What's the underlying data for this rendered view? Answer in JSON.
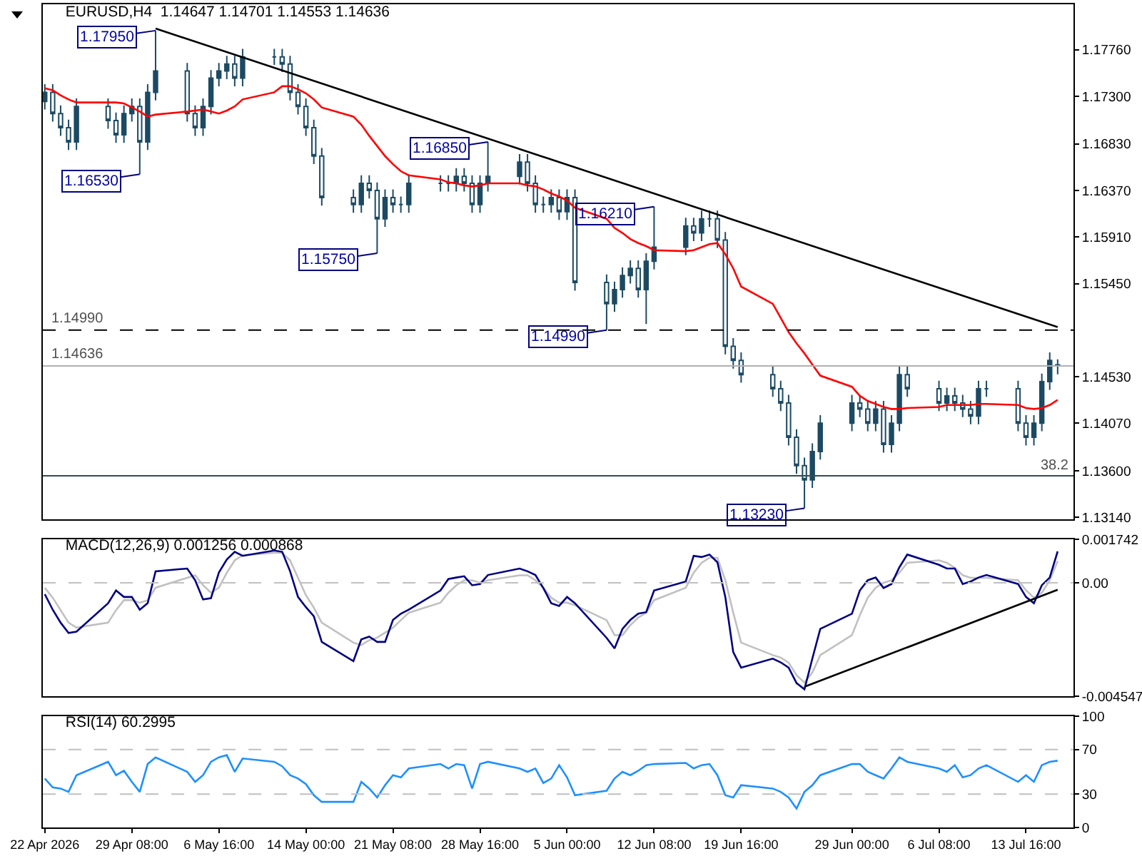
{
  "chart_data": [
    {
      "type": "candlestick",
      "title": "EURUSD,H4  1.14647 1.14701 1.14553 1.14636",
      "color": "#1c4a63",
      "x": [
        "2026-04-22T00:00",
        "2026-04-22T16:00",
        "2026-04-23T08:00",
        "2026-04-24T00:00",
        "2026-04-24T16:00",
        "2026-04-27T08:00",
        "2026-04-28T00:00",
        "2026-04-28T16:00",
        "2026-04-29T08:00",
        "2026-04-30T00:00",
        "2026-04-30T16:00",
        "2026-05-01T08:00",
        "2026-05-04T00:00",
        "2026-05-04T16:00",
        "2026-05-05T08:00",
        "2026-05-06T00:00",
        "2026-05-06T16:00",
        "2026-05-07T08:00",
        "2026-05-08T00:00",
        "2026-05-08T16:00",
        "2026-05-11T08:00",
        "2026-05-12T00:00",
        "2026-05-12T16:00",
        "2026-05-13T08:00",
        "2026-05-14T00:00",
        "2026-05-14T16:00",
        "2026-05-15T08:00",
        "2026-05-18T00:00",
        "2026-05-18T16:00",
        "2026-05-19T08:00",
        "2026-05-20T00:00",
        "2026-05-20T16:00",
        "2026-05-21T08:00",
        "2026-05-22T00:00",
        "2026-05-22T16:00",
        "2026-05-25T08:00",
        "2026-05-26T00:00",
        "2026-05-26T16:00",
        "2026-05-27T08:00",
        "2026-05-28T00:00",
        "2026-05-28T16:00",
        "2026-05-29T08:00",
        "2026-06-01T00:00",
        "2026-06-01T16:00",
        "2026-06-02T08:00",
        "2026-06-03T00:00",
        "2026-06-03T16:00",
        "2026-06-04T08:00",
        "2026-06-05T00:00",
        "2026-06-05T16:00",
        "2026-06-08T08:00",
        "2026-06-09T00:00",
        "2026-06-09T16:00",
        "2026-06-10T08:00",
        "2026-06-11T00:00",
        "2026-06-11T16:00",
        "2026-06-12T08:00",
        "2026-06-15T00:00",
        "2026-06-15T16:00",
        "2026-06-16T08:00",
        "2026-06-17T00:00",
        "2026-06-17T16:00",
        "2026-06-18T08:00",
        "2026-06-19T00:00",
        "2026-06-19T16:00",
        "2026-06-22T08:00",
        "2026-06-23T00:00",
        "2026-06-23T16:00",
        "2026-06-24T08:00",
        "2026-06-25T00:00",
        "2026-06-25T16:00",
        "2026-06-26T08:00",
        "2026-06-29T00:00",
        "2026-06-29T16:00",
        "2026-06-30T08:00",
        "2026-07-01T00:00",
        "2026-07-01T16:00",
        "2026-07-02T08:00",
        "2026-07-03T00:00",
        "2026-07-03T16:00",
        "2026-07-06T08:00",
        "2026-07-07T00:00",
        "2026-07-07T16:00",
        "2026-07-08T08:00",
        "2026-07-09T00:00",
        "2026-07-09T16:00",
        "2026-07-10T08:00",
        "2026-07-13T00:00",
        "2026-07-13T16:00",
        "2026-07-14T08:00",
        "2026-07-15T00:00",
        "2026-07-15T16:00",
        "2026-07-16T08:00"
      ],
      "ohlc": [
        [
          1.1725,
          1.1742,
          1.1717,
          1.1734
        ],
        [
          1.1734,
          1.1742,
          1.1705,
          1.1713
        ],
        [
          1.1713,
          1.1721,
          1.1691,
          1.1699
        ],
        [
          1.1699,
          1.1707,
          1.1677,
          1.1685
        ],
        [
          1.1685,
          1.1728,
          1.1677,
          1.172
        ],
        [
          1.172,
          1.1728,
          1.1698,
          1.1706
        ],
        [
          1.1706,
          1.1714,
          1.1684,
          1.1692
        ],
        [
          1.1692,
          1.1721,
          1.1684,
          1.1713
        ],
        [
          1.1713,
          1.1728,
          1.1705,
          1.172
        ],
        [
          1.172,
          1.1728,
          1.1653,
          1.1685
        ],
        [
          1.1685,
          1.1742,
          1.1677,
          1.1734
        ],
        [
          1.1734,
          1.1795,
          1.1726,
          1.1755
        ],
        [
          1.1755,
          1.1763,
          1.1705,
          1.1713
        ],
        [
          1.1713,
          1.1721,
          1.1691,
          1.1699
        ],
        [
          1.1699,
          1.1728,
          1.1691,
          1.172
        ],
        [
          1.172,
          1.1756,
          1.1712,
          1.1748
        ],
        [
          1.1748,
          1.1763,
          1.174,
          1.1755
        ],
        [
          1.1755,
          1.177,
          1.1747,
          1.1762
        ],
        [
          1.1762,
          1.177,
          1.174,
          1.1748
        ],
        [
          1.1748,
          1.1777,
          1.174,
          1.1769
        ],
        [
          1.1769,
          1.1777,
          1.1761,
          1.1769
        ],
        [
          1.1769,
          1.1777,
          1.1754,
          1.1762
        ],
        [
          1.1762,
          1.177,
          1.1726,
          1.1734
        ],
        [
          1.1734,
          1.1742,
          1.1712,
          1.172
        ],
        [
          1.172,
          1.1728,
          1.1691,
          1.1699
        ],
        [
          1.1699,
          1.1707,
          1.1663,
          1.1671
        ],
        [
          1.1671,
          1.1679,
          1.1622,
          1.163
        ],
        [
          1.163,
          1.1638,
          1.1615,
          1.1623
        ],
        [
          1.1623,
          1.1652,
          1.1615,
          1.1644
        ],
        [
          1.1644,
          1.1652,
          1.1629,
          1.1637
        ],
        [
          1.1637,
          1.1645,
          1.1575,
          1.1609
        ],
        [
          1.1609,
          1.1638,
          1.1601,
          1.163
        ],
        [
          1.163,
          1.1638,
          1.1615,
          1.1623
        ],
        [
          1.1623,
          1.1631,
          1.1615,
          1.1623
        ],
        [
          1.1623,
          1.1652,
          1.1615,
          1.1644
        ],
        [
          1.1644,
          1.1652,
          1.1636,
          1.1644
        ],
        [
          1.1644,
          1.1652,
          1.1636,
          1.1644
        ],
        [
          1.1644,
          1.1659,
          1.1636,
          1.1651
        ],
        [
          1.1651,
          1.1659,
          1.1636,
          1.1644
        ],
        [
          1.1644,
          1.1652,
          1.1615,
          1.1623
        ],
        [
          1.1623,
          1.1652,
          1.1615,
          1.1644
        ],
        [
          1.1644,
          1.1685,
          1.1636,
          1.1651
        ],
        [
          1.1651,
          1.1673,
          1.1643,
          1.1665
        ],
        [
          1.1665,
          1.1673,
          1.1636,
          1.1644
        ],
        [
          1.1644,
          1.1652,
          1.1615,
          1.1623
        ],
        [
          1.1623,
          1.1631,
          1.1615,
          1.1623
        ],
        [
          1.1623,
          1.1638,
          1.1615,
          1.163
        ],
        [
          1.163,
          1.1638,
          1.1608,
          1.1616
        ],
        [
          1.1616,
          1.1638,
          1.1608,
          1.163
        ],
        [
          1.163,
          1.1638,
          1.1538,
          1.1546
        ],
        [
          1.1546,
          1.1554,
          1.1499,
          1.1525
        ],
        [
          1.1525,
          1.1547,
          1.1517,
          1.1539
        ],
        [
          1.1539,
          1.1561,
          1.1531,
          1.1553
        ],
        [
          1.1553,
          1.1568,
          1.1545,
          1.156
        ],
        [
          1.156,
          1.1568,
          1.1531,
          1.1539
        ],
        [
          1.1539,
          1.1575,
          1.1505,
          1.1567
        ],
        [
          1.1567,
          1.1621,
          1.1559,
          1.1581
        ],
        [
          1.1581,
          1.161,
          1.1573,
          1.1602
        ],
        [
          1.1602,
          1.161,
          1.1587,
          1.1595
        ],
        [
          1.1595,
          1.1617,
          1.1587,
          1.1609
        ],
        [
          1.1609,
          1.1617,
          1.1601,
          1.1609
        ],
        [
          1.1609,
          1.1617,
          1.158,
          1.1588
        ],
        [
          1.1588,
          1.1596,
          1.1475,
          1.1483
        ],
        [
          1.1483,
          1.1491,
          1.1461,
          1.1469
        ],
        [
          1.1469,
          1.1477,
          1.1447,
          1.1455
        ],
        [
          1.1455,
          1.1463,
          1.1433,
          1.1441
        ],
        [
          1.1441,
          1.1449,
          1.1419,
          1.1427
        ],
        [
          1.1427,
          1.1435,
          1.1385,
          1.1393
        ],
        [
          1.1393,
          1.1401,
          1.1357,
          1.1365
        ],
        [
          1.1365,
          1.1373,
          1.1323,
          1.1351
        ],
        [
          1.1351,
          1.1387,
          1.1343,
          1.1379
        ],
        [
          1.1379,
          1.1415,
          1.1371,
          1.1407
        ],
        [
          1.1407,
          1.1435,
          1.1399,
          1.1427
        ],
        [
          1.1427,
          1.1435,
          1.1413,
          1.1421
        ],
        [
          1.1421,
          1.1429,
          1.1399,
          1.1407
        ],
        [
          1.1407,
          1.1429,
          1.1399,
          1.1421
        ],
        [
          1.1421,
          1.1429,
          1.1378,
          1.1386
        ],
        [
          1.1386,
          1.1415,
          1.1378,
          1.1407
        ],
        [
          1.1407,
          1.1463,
          1.1399,
          1.1455
        ],
        [
          1.1455,
          1.1463,
          1.1433,
          1.1441
        ],
        [
          1.1441,
          1.1449,
          1.1419,
          1.1427
        ],
        [
          1.1427,
          1.1442,
          1.1419,
          1.1434
        ],
        [
          1.1434,
          1.1442,
          1.1419,
          1.1427
        ],
        [
          1.1427,
          1.1435,
          1.1413,
          1.1421
        ],
        [
          1.1421,
          1.1429,
          1.1406,
          1.1414
        ],
        [
          1.1414,
          1.1449,
          1.1406,
          1.1441
        ],
        [
          1.1441,
          1.1449,
          1.1433,
          1.1441
        ],
        [
          1.1441,
          1.1449,
          1.1399,
          1.1407
        ],
        [
          1.1407,
          1.1415,
          1.1385,
          1.1393
        ],
        [
          1.1393,
          1.1415,
          1.1385,
          1.1407
        ],
        [
          1.1407,
          1.1456,
          1.1399,
          1.1448
        ],
        [
          1.1448,
          1.1477,
          1.144,
          1.1469
        ],
        [
          1.14647,
          1.14701,
          1.14553,
          1.14636
        ]
      ],
      "series": [
        {
          "type": "line",
          "color": "#ff0000",
          "values": [
            1.1738,
            1.1736,
            1.1731,
            1.1727,
            1.1724,
            1.1724,
            1.1724,
            1.1723,
            1.1719,
            1.1715,
            1.171,
            1.1712,
            1.1715,
            1.1716,
            1.1717,
            1.1715,
            1.1713,
            1.1716,
            1.172,
            1.1727,
            1.1734,
            1.174,
            1.174,
            1.1737,
            1.1733,
            1.1727,
            1.1719,
            1.171,
            1.1702,
            1.1691,
            1.1681,
            1.1671,
            1.1663,
            1.1656,
            1.1652,
            1.1648,
            1.1645,
            1.1644,
            1.1642,
            1.1641,
            1.1642,
            1.1644,
            1.1644,
            1.1642,
            1.1641,
            1.1638,
            1.1634,
            1.1631,
            1.1627,
            1.162,
            1.1609,
            1.16,
            1.1595,
            1.1589,
            1.1585,
            1.1582,
            1.1578,
            1.1577,
            1.1578,
            1.1581,
            1.1584,
            1.1585,
            1.1574,
            1.156,
            1.1542,
            1.1525,
            1.1511,
            1.1497,
            1.1486,
            1.1476,
            1.1465,
            1.1454,
            1.1443,
            1.1434,
            1.1429,
            1.1426,
            1.1423,
            1.1421,
            1.1421,
            1.1422,
            1.1423,
            1.1425,
            1.1425,
            1.1425,
            1.1425,
            1.1426,
            1.1426,
            1.1425,
            1.1422,
            1.1421,
            1.1422,
            1.1425,
            1.143
          ]
        },
        {
          "type": "line",
          "color": "#000000",
          "x": [
            "2026-05-01T08:00",
            "2026-07-16T08:00"
          ],
          "values": [
            1.1797,
            1.1502
          ]
        }
      ],
      "xlim": [
        "2026-04-21T20:00",
        "2026-07-17T16:00"
      ],
      "ylim": [
        1.1312,
        1.1821
      ],
      "yticks": [
        {
          "value": 1.1776,
          "label": "1.17760"
        },
        {
          "value": 1.173,
          "label": "1.17300"
        },
        {
          "value": 1.1683,
          "label": "1.16830"
        },
        {
          "value": 1.1637,
          "label": "1.16370"
        },
        {
          "value": 1.1591,
          "label": "1.15910"
        },
        {
          "value": 1.1545,
          "label": "1.15450"
        },
        {
          "value": 1.1453,
          "label": "1.14530"
        },
        {
          "value": 1.1407,
          "label": "1.14070"
        },
        {
          "value": 1.136,
          "label": "1.13600"
        },
        {
          "value": 1.1314,
          "label": "1.13140"
        }
      ],
      "ref_lines": [
        {
          "axis": "y",
          "value": 1.1499,
          "label": "1.14990",
          "color": "#000000",
          "line_style": "dashed"
        },
        {
          "axis": "y",
          "value": 1.14636,
          "label": "1.14636",
          "color": "#b0b0b0"
        },
        {
          "axis": "y",
          "value": 1.1355,
          "color": "#2f4f4f"
        }
      ],
      "annotations": [
        {
          "text": "38.2",
          "y": 1.1355
        },
        {
          "text": "1.17950",
          "x": "2026-05-01T08:00",
          "y": 1.1795
        },
        {
          "text": "1.16530",
          "x": "2026-04-30T00:00",
          "y": 1.1653
        },
        {
          "text": "1.15750",
          "x": "2026-05-20T00:00",
          "y": 1.1575
        },
        {
          "text": "1.16850",
          "x": "2026-05-29T08:00",
          "y": 1.1685
        },
        {
          "text": "1.14990",
          "x": "2026-06-08T08:00",
          "y": 1.1499
        },
        {
          "text": "1.16210",
          "x": "2026-06-12T08:00",
          "y": 1.1621
        },
        {
          "text": "1.13230",
          "x": "2026-06-25T00:00",
          "y": 1.1323
        }
      ],
      "grid": false,
      "tick_labels": "y"
    },
    {
      "type": "line",
      "title": "MACD(12,26,9) 0.001256 0.000868",
      "x": [
        "2026-04-22T00:00",
        "2026-04-22T16:00",
        "2026-04-23T08:00",
        "2026-04-24T00:00",
        "2026-04-24T16:00",
        "2026-04-27T08:00",
        "2026-04-28T00:00",
        "2026-04-28T16:00",
        "2026-04-29T08:00",
        "2026-04-30T00:00",
        "2026-04-30T16:00",
        "2026-05-01T08:00",
        "2026-05-04T00:00",
        "2026-05-04T16:00",
        "2026-05-05T08:00",
        "2026-05-06T00:00",
        "2026-05-06T16:00",
        "2026-05-07T08:00",
        "2026-05-08T00:00",
        "2026-05-08T16:00",
        "2026-05-11T08:00",
        "2026-05-12T00:00",
        "2026-05-12T16:00",
        "2026-05-13T08:00",
        "2026-05-14T00:00",
        "2026-05-14T16:00",
        "2026-05-15T08:00",
        "2026-05-18T00:00",
        "2026-05-18T16:00",
        "2026-05-19T08:00",
        "2026-05-20T00:00",
        "2026-05-20T16:00",
        "2026-05-21T08:00",
        "2026-05-22T00:00",
        "2026-05-22T16:00",
        "2026-05-25T08:00",
        "2026-05-26T00:00",
        "2026-05-26T16:00",
        "2026-05-27T08:00",
        "2026-05-28T00:00",
        "2026-05-28T16:00",
        "2026-05-29T08:00",
        "2026-06-01T00:00",
        "2026-06-01T16:00",
        "2026-06-02T08:00",
        "2026-06-03T00:00",
        "2026-06-03T16:00",
        "2026-06-04T08:00",
        "2026-06-05T00:00",
        "2026-06-05T16:00",
        "2026-06-08T08:00",
        "2026-06-09T00:00",
        "2026-06-09T16:00",
        "2026-06-10T08:00",
        "2026-06-11T00:00",
        "2026-06-11T16:00",
        "2026-06-12T08:00",
        "2026-06-15T00:00",
        "2026-06-15T16:00",
        "2026-06-16T08:00",
        "2026-06-17T00:00",
        "2026-06-17T16:00",
        "2026-06-18T08:00",
        "2026-06-19T00:00",
        "2026-06-19T16:00",
        "2026-06-22T08:00",
        "2026-06-23T00:00",
        "2026-06-23T16:00",
        "2026-06-24T08:00",
        "2026-06-25T00:00",
        "2026-06-25T16:00",
        "2026-06-26T08:00",
        "2026-06-29T00:00",
        "2026-06-29T16:00",
        "2026-06-30T08:00",
        "2026-07-01T00:00",
        "2026-07-01T16:00",
        "2026-07-02T08:00",
        "2026-07-03T00:00",
        "2026-07-03T16:00",
        "2026-07-06T08:00",
        "2026-07-07T00:00",
        "2026-07-07T16:00",
        "2026-07-08T08:00",
        "2026-07-09T00:00",
        "2026-07-09T16:00",
        "2026-07-10T08:00",
        "2026-07-13T00:00",
        "2026-07-13T16:00",
        "2026-07-14T08:00",
        "2026-07-15T00:00",
        "2026-07-15T16:00",
        "2026-07-16T08:00"
      ],
      "xlim": [
        "2026-04-21T20:00",
        "2026-07-17T16:00"
      ],
      "series": [
        {
          "color": "#c0c0c0",
          "values": [
            -0.0002,
            -0.0006,
            -0.0011,
            -0.0016,
            -0.0018,
            -0.0016,
            -0.0011,
            -0.0007,
            -0.0007,
            -0.0008,
            -0.0007,
            -0.0002,
            0.0002,
            0.0003,
            -0.0001,
            -0.0004,
            -0.0002,
            0.0004,
            0.0009,
            0.0011,
            0.0012,
            0.0012,
            0.0009,
            0.0002,
            -0.0005,
            -0.001,
            -0.0016,
            -0.0024,
            -0.0025,
            -0.0023,
            -0.0022,
            -0.002,
            -0.0018,
            -0.0015,
            -0.0012,
            -0.0008,
            -0.0004,
            -0.0001,
            0.0001,
            0.0001,
            0,
            0.0001,
            0.0003,
            0.0003,
            0.0001,
            -0.0002,
            -0.0006,
            -0.0008,
            -0.0008,
            -0.0009,
            -0.0015,
            -0.0021,
            -0.0021,
            -0.0017,
            -0.0014,
            -0.0012,
            -0.0007,
            -0.0002,
            0.0004,
            0.0008,
            0.001,
            0.001,
            0.0001,
            -0.0012,
            -0.0024,
            -0.0029,
            -0.003,
            -0.0032,
            -0.0037,
            -0.004,
            -0.0036,
            -0.0029,
            -0.0021,
            -0.0013,
            -0.0006,
            -0.0002,
            0,
            0.0001,
            0.0004,
            0.0008,
            0.0009,
            0.0008,
            0.0006,
            0.0003,
            0.0002,
            0.0002,
            0.0002,
            0.0001,
            -0.0003,
            -0.0006,
            -0.0004,
            0.0001,
            0.000868
          ]
        },
        {
          "color": "#000080",
          "values": [
            -0.00046,
            -0.00108,
            -0.0016,
            -0.00201,
            -0.00196,
            -0.00082,
            -0.00031,
            -0.00057,
            -0.00057,
            -0.00108,
            -0.00082,
            0.00046,
            0.00057,
            0.0001,
            -0.00067,
            -0.00062,
            0.00041,
            0.00093,
            0.00124,
            0.00108,
            0.00129,
            0.00124,
            0.00046,
            -0.00057,
            -0.00098,
            -0.00134,
            -0.00237,
            -0.00314,
            -0.00227,
            -0.00216,
            -0.00237,
            -0.00237,
            -0.00149,
            -0.00124,
            -0.00108,
            -0.00031,
            0.00015,
            0.00021,
            0.00026,
            -0.0001,
            -5e-05,
            0.00031,
            0.00057,
            0.00046,
            0.00031,
            -0.00021,
            -0.00082,
            -0.00093,
            -0.00057,
            -0.00082,
            -0.00221,
            -0.00263,
            -0.00185,
            -0.00149,
            -0.00124,
            -0.00118,
            -0.00031,
            5e-05,
            0.00108,
            0.00103,
            0.00113,
            0.00082,
            -0.00057,
            -0.00278,
            -0.0034,
            -0.00304,
            -0.00319,
            -0.0034,
            -0.00402,
            -0.00427,
            -0.00304,
            -0.00185,
            -0.00124,
            -0.00031,
            0.0001,
            0.00021,
            -0.00021,
            -5e-05,
            0.00062,
            0.00113,
            0.00072,
            0.00057,
            0.00057,
            -5e-05,
            5e-05,
            0.00021,
            0.00031,
            -5e-05,
            -0.00057,
            -0.00082,
            -0.0001,
            0.00021,
            0.001256
          ]
        },
        {
          "color": "#000000",
          "x": [
            "2026-06-25T00:00",
            "2026-07-16T08:00"
          ],
          "values": [
            -0.00417,
            -0.00028
          ]
        }
      ],
      "ylim": [
        -0.004547,
        0.001742
      ],
      "yticks": [
        {
          "value": 0.001742,
          "label": "0.001742"
        },
        {
          "value": 0,
          "label": "0.00"
        },
        {
          "value": -0.004547,
          "label": "-0.004547"
        }
      ],
      "ref_lines": [
        {
          "axis": "y",
          "value": 0,
          "color": "#c0c0c0",
          "line_style": "dashed"
        }
      ],
      "grid": false,
      "tick_labels": "y"
    },
    {
      "type": "line",
      "title": "RSI(14) 60.2995",
      "x": [
        "2026-04-22T00:00",
        "2026-04-22T16:00",
        "2026-04-23T08:00",
        "2026-04-24T00:00",
        "2026-04-24T16:00",
        "2026-04-27T08:00",
        "2026-04-28T00:00",
        "2026-04-28T16:00",
        "2026-04-29T08:00",
        "2026-04-30T00:00",
        "2026-04-30T16:00",
        "2026-05-01T08:00",
        "2026-05-04T00:00",
        "2026-05-04T16:00",
        "2026-05-05T08:00",
        "2026-05-06T00:00",
        "2026-05-06T16:00",
        "2026-05-07T08:00",
        "2026-05-08T00:00",
        "2026-05-08T16:00",
        "2026-05-11T08:00",
        "2026-05-12T00:00",
        "2026-05-12T16:00",
        "2026-05-13T08:00",
        "2026-05-14T00:00",
        "2026-05-14T16:00",
        "2026-05-15T08:00",
        "2026-05-18T00:00",
        "2026-05-18T16:00",
        "2026-05-19T08:00",
        "2026-05-20T00:00",
        "2026-05-20T16:00",
        "2026-05-21T08:00",
        "2026-05-22T00:00",
        "2026-05-22T16:00",
        "2026-05-25T08:00",
        "2026-05-26T00:00",
        "2026-05-26T16:00",
        "2026-05-27T08:00",
        "2026-05-28T00:00",
        "2026-05-28T16:00",
        "2026-05-29T08:00",
        "2026-06-01T00:00",
        "2026-06-01T16:00",
        "2026-06-02T08:00",
        "2026-06-03T00:00",
        "2026-06-03T16:00",
        "2026-06-04T08:00",
        "2026-06-05T00:00",
        "2026-06-05T16:00",
        "2026-06-08T08:00",
        "2026-06-09T00:00",
        "2026-06-09T16:00",
        "2026-06-10T08:00",
        "2026-06-11T00:00",
        "2026-06-11T16:00",
        "2026-06-12T08:00",
        "2026-06-15T00:00",
        "2026-06-15T16:00",
        "2026-06-16T08:00",
        "2026-06-17T00:00",
        "2026-06-17T16:00",
        "2026-06-18T08:00",
        "2026-06-19T00:00",
        "2026-06-19T16:00",
        "2026-06-22T08:00",
        "2026-06-23T00:00",
        "2026-06-23T16:00",
        "2026-06-24T08:00",
        "2026-06-25T00:00",
        "2026-06-25T16:00",
        "2026-06-26T08:00",
        "2026-06-29T00:00",
        "2026-06-29T16:00",
        "2026-06-30T08:00",
        "2026-07-01T00:00",
        "2026-07-01T16:00",
        "2026-07-02T08:00",
        "2026-07-03T00:00",
        "2026-07-03T16:00",
        "2026-07-06T08:00",
        "2026-07-07T00:00",
        "2026-07-07T16:00",
        "2026-07-08T08:00",
        "2026-07-09T00:00",
        "2026-07-09T16:00",
        "2026-07-10T08:00",
        "2026-07-13T00:00",
        "2026-07-13T16:00",
        "2026-07-14T08:00",
        "2026-07-15T00:00",
        "2026-07-15T16:00",
        "2026-07-16T08:00"
      ],
      "xlim": [
        "2026-04-21T20:00",
        "2026-07-17T16:00"
      ],
      "xticks": [
        {
          "value": "2026-04-22T00:00",
          "label": "22 Apr 2026"
        },
        {
          "value": "2026-04-29T08:00",
          "label": "29 Apr 08:00"
        },
        {
          "value": "2026-05-06T16:00",
          "label": "6 May 16:00"
        },
        {
          "value": "2026-05-14T00:00",
          "label": "14 May 00:00"
        },
        {
          "value": "2026-05-21T08:00",
          "label": "21 May 08:00"
        },
        {
          "value": "2026-05-28T16:00",
          "label": "28 May 16:00"
        },
        {
          "value": "2026-06-05T00:00",
          "label": "5 Jun 00:00"
        },
        {
          "value": "2026-06-12T08:00",
          "label": "12 Jun 08:00"
        },
        {
          "value": "2026-06-19T16:00",
          "label": "19 Jun 16:00"
        },
        {
          "value": "2026-06-29T00:00",
          "label": "29 Jun 00:00"
        },
        {
          "value": "2026-07-06T08:00",
          "label": "6 Jul 08:00"
        },
        {
          "value": "2026-07-13T16:00",
          "label": "13 Jul 16:00"
        }
      ],
      "series": [
        {
          "color": "#1e90ff",
          "values": [
            44,
            36,
            35,
            32,
            47,
            59,
            47,
            51,
            41,
            32,
            57,
            63,
            50,
            41,
            47,
            59,
            63,
            65,
            50,
            62,
            59,
            55,
            47,
            44,
            39,
            29,
            23,
            23,
            41,
            35,
            27,
            38,
            47,
            45,
            53,
            57,
            53,
            57,
            56,
            35,
            57,
            59,
            53,
            50,
            53,
            40,
            44,
            56,
            45,
            29,
            33,
            44,
            50,
            47,
            51,
            56,
            57,
            58,
            53,
            56,
            57,
            47,
            29,
            27,
            38,
            35,
            32,
            27,
            17,
            32,
            38,
            47,
            57,
            57,
            50,
            47,
            44,
            53,
            63,
            59,
            53,
            50,
            56,
            45,
            47,
            53,
            56,
            41,
            47,
            41,
            56,
            59,
            60
          ]
        }
      ],
      "ylim": [
        0,
        100
      ],
      "yticks": [
        0,
        30,
        70,
        100
      ],
      "ref_lines": [
        {
          "axis": "y",
          "value": 30,
          "color": "#c0c0c0",
          "line_style": "dashed"
        },
        {
          "axis": "y",
          "value": 70,
          "color": "#c0c0c0",
          "line_style": "dashed"
        }
      ],
      "grid": false
    }
  ]
}
